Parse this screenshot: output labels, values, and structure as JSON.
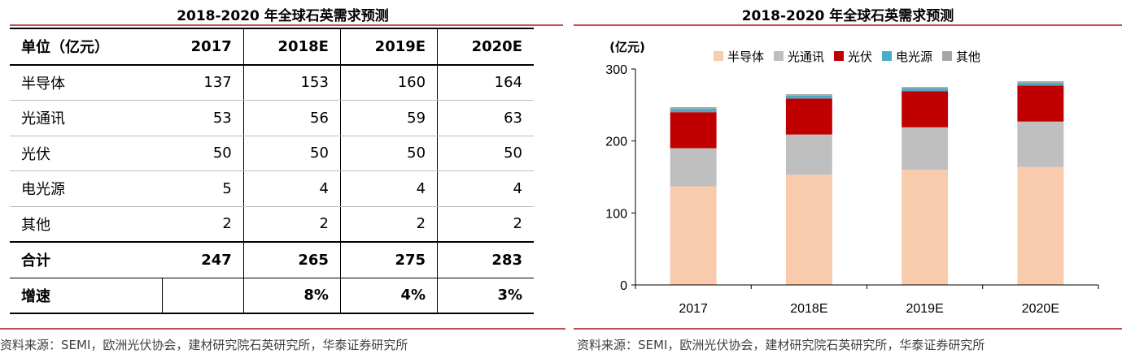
{
  "left_title": "2018-2020 年全球石英需求预测",
  "right_title": "2018-2020 年全球石英需求预测",
  "source": "资料来源：SEMI，欧洲光伏协会，建材研究院石英研究所，华泰证券研究所",
  "table": {
    "header": [
      "单位（亿元）",
      "2017",
      "2018E",
      "2019E",
      "2020E"
    ],
    "rows": [
      {
        "label": "半导体",
        "values": [
          "137",
          "153",
          "160",
          "164"
        ]
      },
      {
        "label": "光通讯",
        "values": [
          "53",
          "56",
          "59",
          "63"
        ]
      },
      {
        "label": "光伏",
        "values": [
          "50",
          "50",
          "50",
          "50"
        ]
      },
      {
        "label": "电光源",
        "values": [
          "5",
          "4",
          "4",
          "4"
        ]
      },
      {
        "label": "其他",
        "values": [
          "2",
          "2",
          "2",
          "2"
        ]
      }
    ],
    "total": {
      "label": "合计",
      "values": [
        "247",
        "265",
        "275",
        "283"
      ]
    },
    "growth": {
      "label": "增速",
      "values": [
        "",
        "8%",
        "4%",
        "3%"
      ]
    }
  },
  "chart_data": {
    "type": "bar",
    "stacked": true,
    "ylabel": "(亿元)",
    "ylim": [
      0,
      300
    ],
    "yticks": [
      0,
      100,
      200,
      300
    ],
    "categories": [
      "2017",
      "2018E",
      "2019E",
      "2020E"
    ],
    "series": [
      {
        "name": "半导体",
        "values": [
          137,
          153,
          160,
          164
        ],
        "color": "#f8cbad"
      },
      {
        "name": "光通讯",
        "values": [
          53,
          56,
          59,
          63
        ],
        "color": "#bfbfbf"
      },
      {
        "name": "光伏",
        "values": [
          50,
          50,
          50,
          50
        ],
        "color": "#c00000"
      },
      {
        "name": "电光源",
        "values": [
          5,
          4,
          4,
          4
        ],
        "color": "#4bacc6"
      },
      {
        "name": "其他",
        "values": [
          2,
          2,
          2,
          2
        ],
        "color": "#a6a6a6"
      }
    ],
    "legend_position": "top"
  }
}
